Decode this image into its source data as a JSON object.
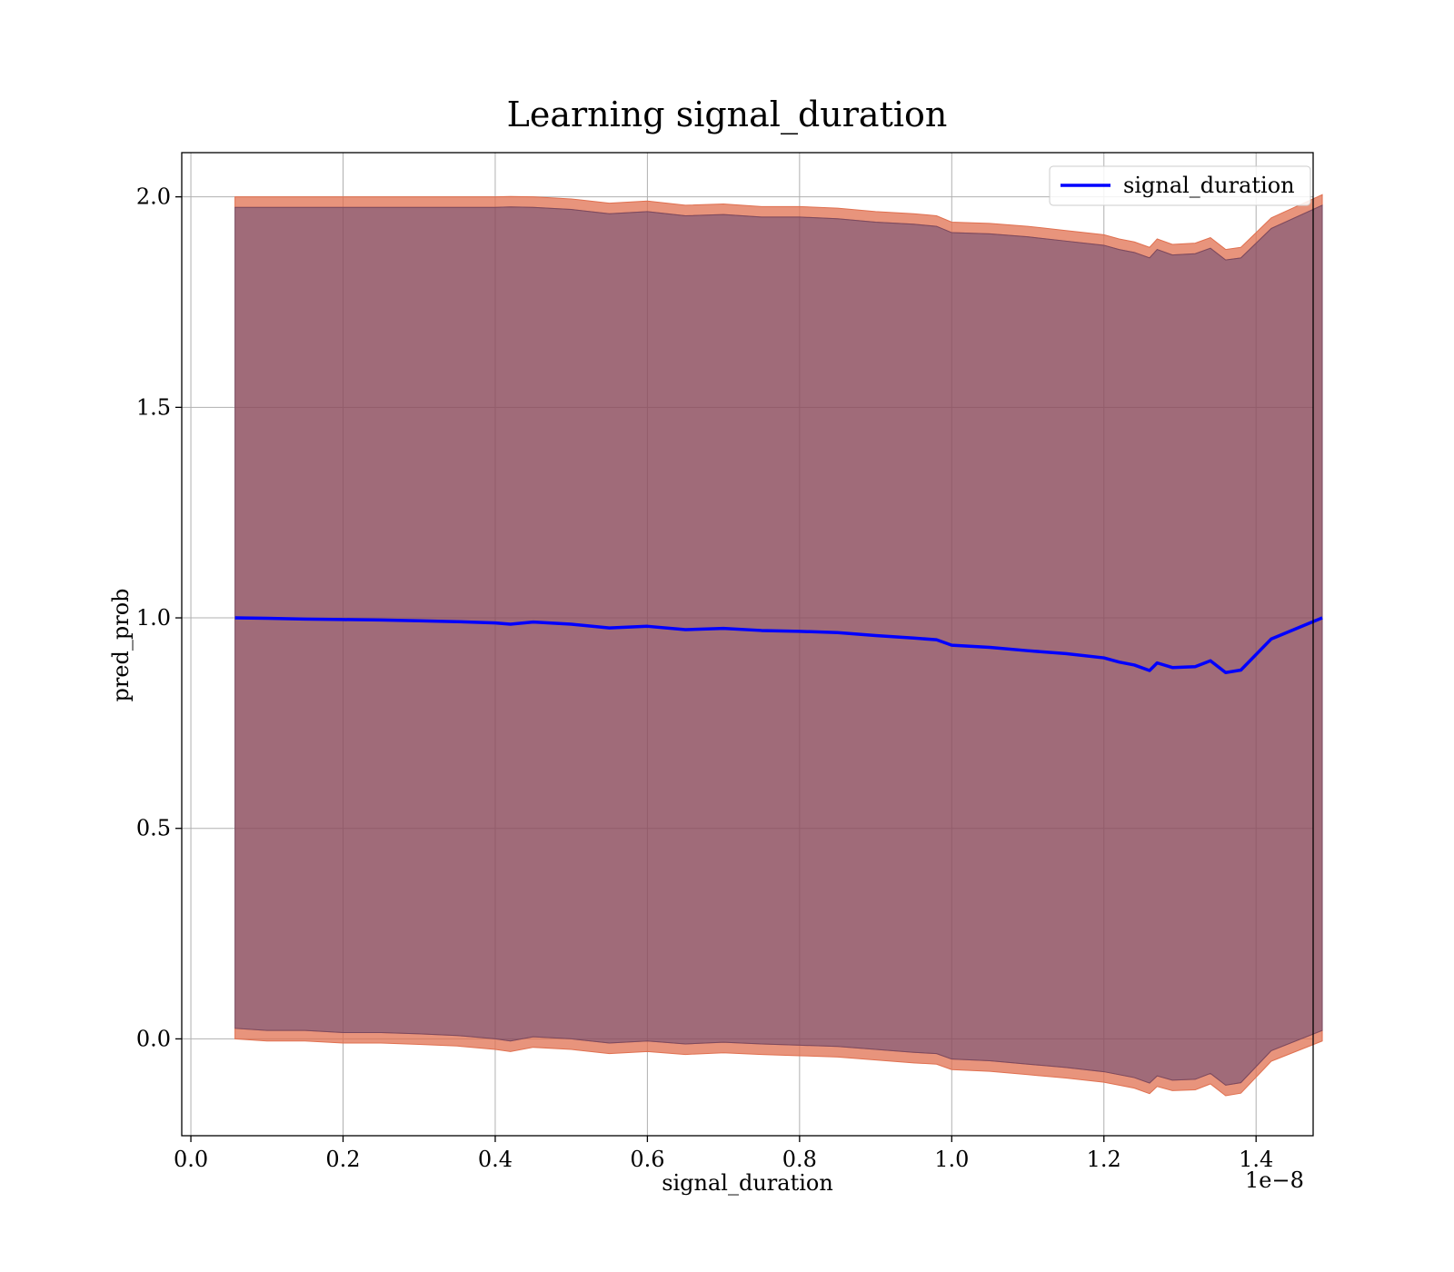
{
  "chart_data": {
    "type": "area",
    "title": "Learning signal_duration",
    "xlabel": "signal_duration",
    "ylabel": "pred_prob",
    "x_offset_label": "1e−8",
    "xlim": [
      -0.012,
      1.475
    ],
    "ylim": [
      -0.23,
      2.105
    ],
    "xticks": [
      0.0,
      0.2,
      0.4,
      0.6,
      0.8,
      1.0,
      1.2,
      1.4
    ],
    "xtick_labels": [
      "0.0",
      "0.2",
      "0.4",
      "0.6",
      "0.8",
      "1.0",
      "1.2",
      "1.4"
    ],
    "yticks": [
      0.0,
      0.5,
      1.0,
      1.5,
      2.0
    ],
    "ytick_labels": [
      "0.0",
      "0.5",
      "1.0",
      "1.5",
      "2.0"
    ],
    "grid": true,
    "legend": {
      "position": "top-right",
      "entries": [
        "signal_duration"
      ]
    },
    "x": [
      0.058,
      0.1,
      0.15,
      0.2,
      0.25,
      0.3,
      0.35,
      0.4,
      0.42,
      0.45,
      0.5,
      0.55,
      0.6,
      0.65,
      0.7,
      0.75,
      0.8,
      0.85,
      0.9,
      0.95,
      0.98,
      1.0,
      1.05,
      1.1,
      1.15,
      1.2,
      1.22,
      1.24,
      1.26,
      1.27,
      1.29,
      1.32,
      1.34,
      1.36,
      1.38,
      1.42,
      1.487
    ],
    "series": [
      {
        "name": "signal_duration",
        "color": "#0000ff",
        "values": [
          1.0,
          0.999,
          0.997,
          0.996,
          0.995,
          0.993,
          0.991,
          0.988,
          0.985,
          0.99,
          0.985,
          0.976,
          0.98,
          0.972,
          0.975,
          0.97,
          0.968,
          0.965,
          0.958,
          0.952,
          0.948,
          0.935,
          0.93,
          0.922,
          0.915,
          0.905,
          0.895,
          0.888,
          0.875,
          0.893,
          0.882,
          0.884,
          0.898,
          0.87,
          0.876,
          0.95,
          1.0
        ],
        "band_upper": [
          1.975,
          1.975,
          1.975,
          1.975,
          1.975,
          1.975,
          1.975,
          1.975,
          1.976,
          1.975,
          1.97,
          1.96,
          1.965,
          1.955,
          1.958,
          1.952,
          1.952,
          1.948,
          1.94,
          1.935,
          1.93,
          1.915,
          1.912,
          1.905,
          1.895,
          1.885,
          1.875,
          1.868,
          1.855,
          1.875,
          1.862,
          1.865,
          1.878,
          1.85,
          1.855,
          1.925,
          1.98
        ],
        "band_lower": [
          0.025,
          0.02,
          0.02,
          0.015,
          0.015,
          0.012,
          0.008,
          0.0,
          -0.005,
          0.005,
          0.0,
          -0.01,
          -0.005,
          -0.012,
          -0.008,
          -0.012,
          -0.015,
          -0.018,
          -0.025,
          -0.032,
          -0.035,
          -0.048,
          -0.052,
          -0.06,
          -0.068,
          -0.078,
          -0.085,
          -0.092,
          -0.105,
          -0.088,
          -0.098,
          -0.096,
          -0.082,
          -0.11,
          -0.104,
          -0.028,
          0.02
        ],
        "band_color": "#8b4a5c"
      }
    ],
    "outer_band_color": "#e07050"
  }
}
